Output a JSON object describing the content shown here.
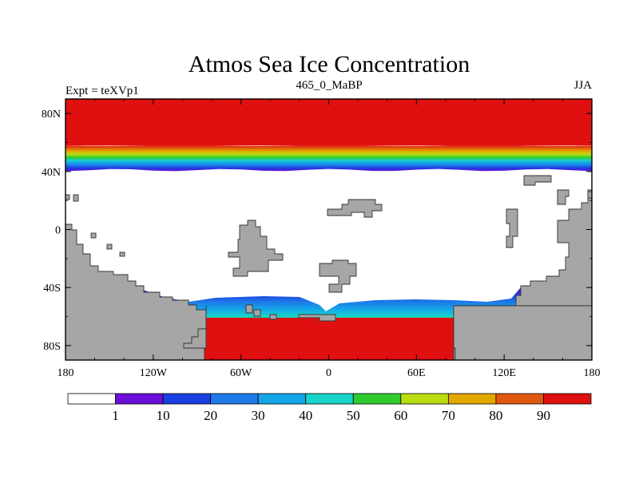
{
  "chart_data": {
    "type": "heatmap",
    "title": "Atmos Sea Ice Concentration",
    "left_label": "Expt = teXVp1",
    "center_label": "465_0_MaBP",
    "right_label": "JJA",
    "variable": "sea ice concentration (%)",
    "x_axis": {
      "range": [
        -180,
        180
      ],
      "ticks": [
        -180,
        -120,
        -60,
        0,
        60,
        120,
        180
      ],
      "tick_labels": [
        "180",
        "120W",
        "60W",
        "0",
        "60E",
        "120E",
        "180"
      ]
    },
    "y_axis": {
      "range": [
        -90,
        90
      ],
      "ticks": [
        80,
        40,
        0,
        -40,
        -80
      ],
      "tick_labels": [
        "80N",
        "40N",
        "0",
        "40S",
        "80S"
      ]
    },
    "north_ice": {
      "full_cover_to_lat": 58,
      "gradient_from_lat": 58,
      "gradient_to_lat": 41
    },
    "south_ice_edge_lat": -49,
    "colorbar": {
      "levels": [
        1,
        10,
        20,
        30,
        40,
        50,
        60,
        70,
        80,
        90
      ],
      "labels": [
        "1",
        "10",
        "20",
        "30",
        "40",
        "50",
        "60",
        "70",
        "80",
        "90"
      ],
      "colors": [
        "#ffffff",
        "#6a0fd8",
        "#1a3fe0",
        "#1e7ae8",
        "#14a6e8",
        "#19d4c8",
        "#2ecc2e",
        "#b9dd10",
        "#e3a800",
        "#e0580f",
        "#e01010"
      ]
    },
    "land_color": "#a6a6a6"
  }
}
